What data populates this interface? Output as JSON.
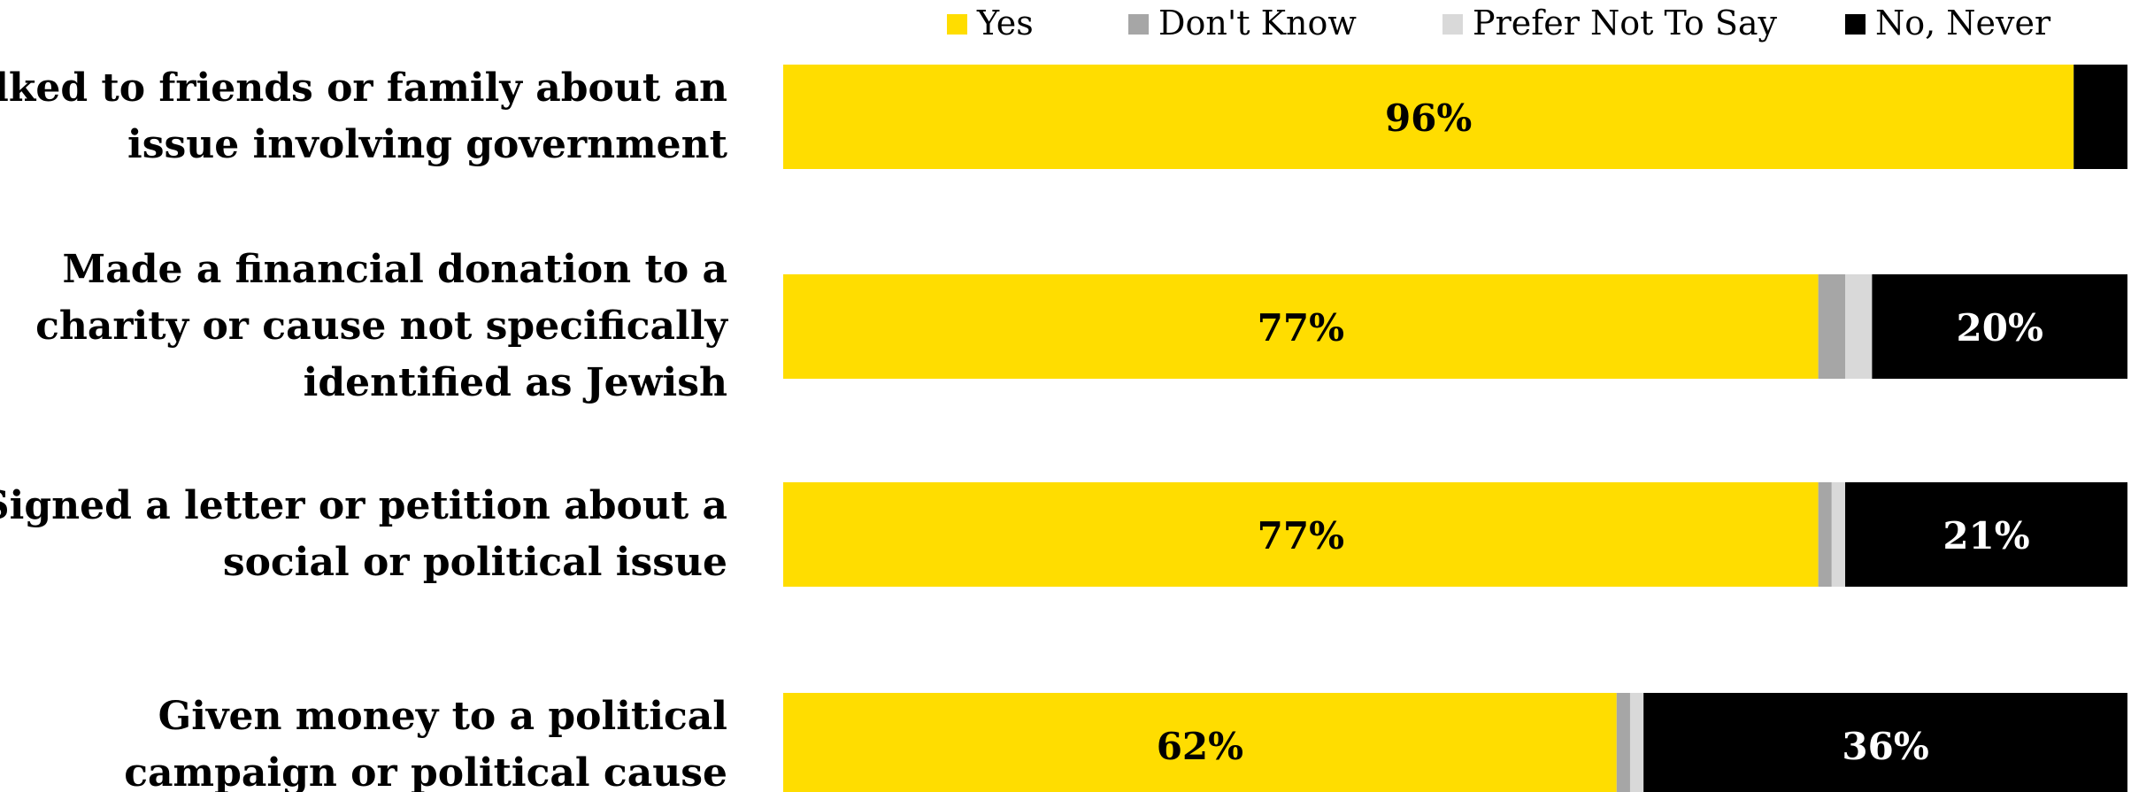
{
  "chart_data": {
    "type": "bar",
    "orientation": "horizontal",
    "stacked": true,
    "legend_position": "top",
    "grid": false,
    "xlim": [
      0,
      100
    ],
    "categories": [
      "Talked to friends or family about an issue involving government",
      "Made a financial donation to a charity or cause not specifically identified as Jewish",
      "Signed a letter or petition about a social or political issue",
      "Given money to a political campaign or political cause"
    ],
    "category_lines": [
      [
        "Talked to friends or family about an",
        "issue involving government"
      ],
      [
        "Made a financial donation to a",
        "charity or cause not specifically",
        "identified as Jewish"
      ],
      [
        "Signed a letter or petition about a",
        "social or political issue"
      ],
      [
        "Given money to a political",
        "campaign or political cause"
      ]
    ],
    "series": [
      {
        "name": "Yes",
        "color": "#FFDD00",
        "label_color": "#000000",
        "values": [
          96,
          77,
          77,
          62
        ],
        "labels": [
          "96%",
          "77%",
          "77%",
          "62%"
        ]
      },
      {
        "name": "Don't Know",
        "color": "#A6A6A6",
        "label_color": "#000000",
        "values": [
          0,
          2,
          1,
          1
        ],
        "labels": [
          "",
          "",
          "",
          ""
        ]
      },
      {
        "name": "Prefer Not To Say",
        "color": "#D9D9D9",
        "label_color": "#000000",
        "values": [
          0,
          2,
          1,
          1
        ],
        "labels": [
          "",
          "",
          "",
          ""
        ]
      },
      {
        "name": "No, Never",
        "color": "#000000",
        "label_color": "#FFFFFF",
        "values": [
          3,
          20,
          21,
          36
        ],
        "labels": [
          "",
          "20%",
          "21%",
          "36%"
        ]
      }
    ]
  }
}
